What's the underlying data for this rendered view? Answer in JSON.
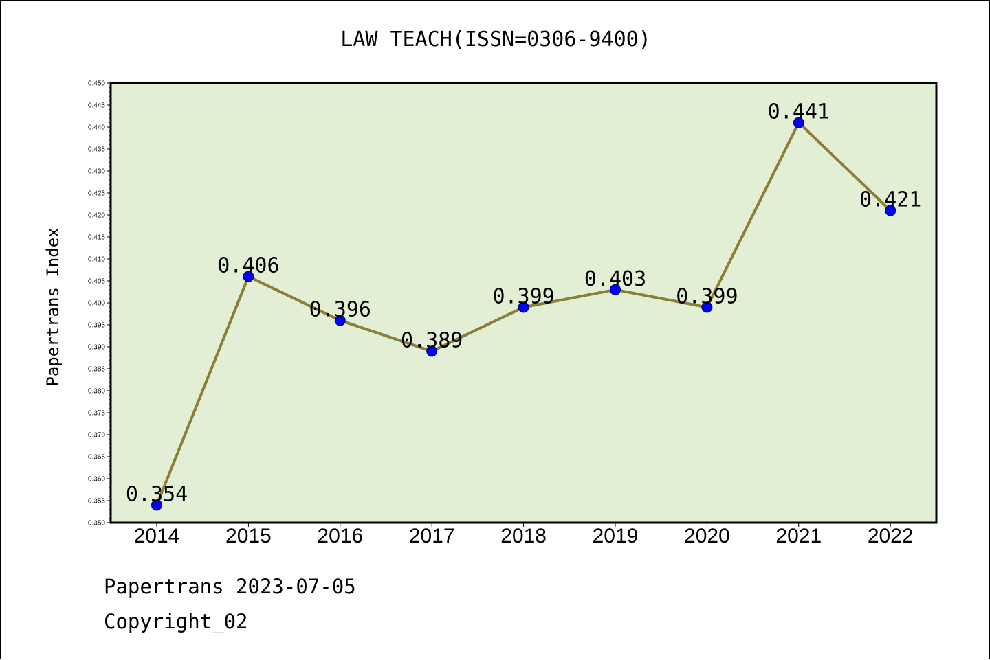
{
  "footer": {
    "line1": "Papertrans 2023-07-05",
    "line2": "Copyright_02"
  },
  "colors": {
    "plot_background": "#e2efd4",
    "line": "#8b7d3a",
    "marker": "#0000ff",
    "axes": "#000000"
  },
  "chart_data": {
    "type": "line",
    "title": "LAW TEACH(ISSN=0306-9400)",
    "xlabel": "",
    "ylabel": "Papertrans Index",
    "categories": [
      "2014",
      "2015",
      "2016",
      "2017",
      "2018",
      "2019",
      "2020",
      "2021",
      "2022"
    ],
    "series": [
      {
        "values": [
          0.354,
          0.406,
          0.396,
          0.389,
          0.399,
          0.403,
          0.399,
          0.441,
          0.421
        ],
        "data_labels": [
          "0.354",
          "0.406",
          "0.396",
          "0.389",
          "0.399",
          "0.403",
          "0.399",
          "0.441",
          "0.421"
        ],
        "marker": "circle"
      }
    ],
    "ylim": [
      0.35,
      0.45
    ],
    "yticks": [
      "0.350",
      "0.355",
      "0.360",
      "0.365",
      "0.370",
      "0.375",
      "0.380",
      "0.385",
      "0.390",
      "0.395",
      "0.400",
      "0.405",
      "0.410",
      "0.415",
      "0.420",
      "0.425",
      "0.430",
      "0.435",
      "0.440",
      "0.445",
      "0.450"
    ],
    "grid": false,
    "legend": "none"
  }
}
